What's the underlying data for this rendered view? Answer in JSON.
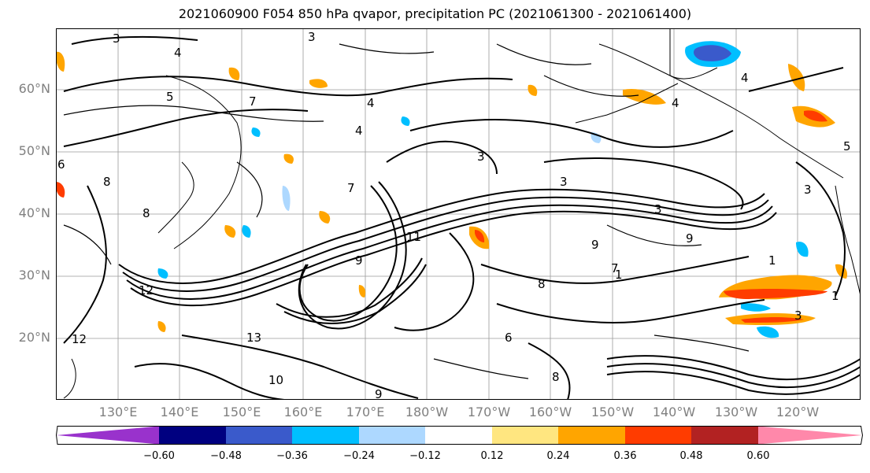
{
  "title": "2021060900 F054 850 hPa qvapor, precipitation PC (2021061300 - 2021061400)",
  "lat_labels": [
    "60°N",
    "50°N",
    "40°N",
    "30°N",
    "20°N"
  ],
  "lon_labels": [
    "130°E",
    "140°E",
    "150°E",
    "160°E",
    "170°E",
    "180°W",
    "170°W",
    "160°W",
    "150°W",
    "140°W",
    "130°W",
    "120°W"
  ],
  "colorbar": {
    "colors": [
      "#9932cc",
      "#000080",
      "#3a5acb",
      "#00bfff",
      "#add8ff",
      "#ffffff",
      "#ffe680",
      "#ffa500",
      "#ff3c00",
      "#b22222",
      "#ff88aa"
    ],
    "tick_labels": [
      "−0.60",
      "−0.48",
      "−0.36",
      "−0.24",
      "−0.12",
      "0.12",
      "0.24",
      "0.36",
      "0.48",
      "0.60"
    ]
  },
  "contour_labels": [
    "3",
    "4",
    "3",
    "7",
    "5",
    "4",
    "6",
    "4",
    "8",
    "7",
    "8",
    "12",
    "12",
    "3",
    "9",
    "11",
    "9",
    "7",
    "9",
    "3",
    "3",
    "8",
    "1",
    "4",
    "6",
    "13",
    "10",
    "8",
    "9",
    "4",
    "3",
    "5",
    "1",
    "3",
    "1"
  ]
}
